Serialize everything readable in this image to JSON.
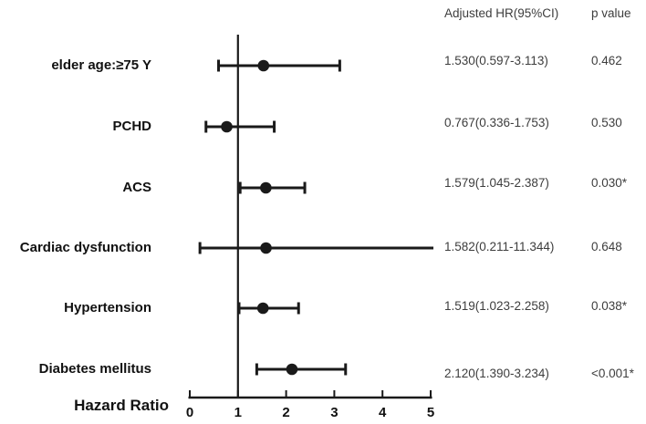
{
  "header": {
    "hr_col": "Adjusted HR(95%CI)",
    "p_col": "p value"
  },
  "chart_data": {
    "type": "forest",
    "title": "",
    "xlabel": "Hazard Ratio",
    "xlim": [
      0,
      5
    ],
    "xticks": [
      "0",
      "1",
      "2",
      "3",
      "4",
      "5"
    ],
    "refline_x": 1,
    "grid": false,
    "rows": [
      {
        "label": "elder age:≥75 Y",
        "hr": 1.53,
        "ci_low": 0.597,
        "ci_high": 3.113,
        "hr_ci_text": "1.530(0.597-3.113)",
        "p_value": "0.462"
      },
      {
        "label": "PCHD",
        "hr": 0.767,
        "ci_low": 0.336,
        "ci_high": 1.753,
        "hr_ci_text": "0.767(0.336-1.753)",
        "p_value": "0.530"
      },
      {
        "label": "ACS",
        "hr": 1.579,
        "ci_low": 1.045,
        "ci_high": 2.387,
        "hr_ci_text": "1.579(1.045-2.387)",
        "p_value": "0.030*"
      },
      {
        "label": "Cardiac dysfunction",
        "hr": 1.582,
        "ci_low": 0.211,
        "ci_high": 11.344,
        "hr_ci_text": "1.582(0.211-11.344)",
        "p_value": "0.648"
      },
      {
        "label": "Hypertension",
        "hr": 1.519,
        "ci_low": 1.023,
        "ci_high": 2.258,
        "hr_ci_text": "1.519(1.023-2.258)",
        "p_value": "0.038*"
      },
      {
        "label": "Diabetes mellitus",
        "hr": 2.12,
        "ci_low": 1.39,
        "ci_high": 3.234,
        "hr_ci_text": "2.120(1.390-3.234)",
        "p_value": "<0.001*"
      }
    ],
    "colors": {
      "line": "#1a1a1a",
      "marker": "#1a1a1a",
      "value_text": "#3d3d3d",
      "label_text": "#111111"
    }
  }
}
